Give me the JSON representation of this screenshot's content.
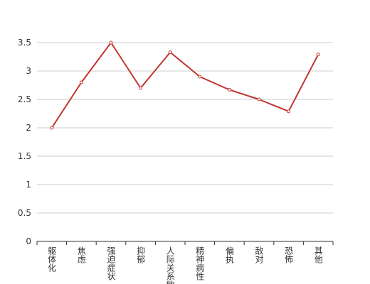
{
  "chart_data": {
    "type": "line",
    "categories": [
      "躯体化",
      "焦虑",
      "强迫症状",
      "抑郁",
      "人际关系敏感",
      "精神病性",
      "偏执",
      "敌对",
      "恐怖",
      "其他"
    ],
    "series": [
      {
        "color": "#c23531",
        "values": [
          2.0,
          2.8,
          3.5,
          2.7,
          3.33,
          2.9,
          2.67,
          2.5,
          2.29,
          3.29
        ]
      }
    ],
    "ylim": [
      0,
      3.5
    ],
    "yticks": [
      0,
      0.5,
      1,
      1.5,
      2,
      2.5,
      3,
      3.5
    ],
    "grid": true
  }
}
